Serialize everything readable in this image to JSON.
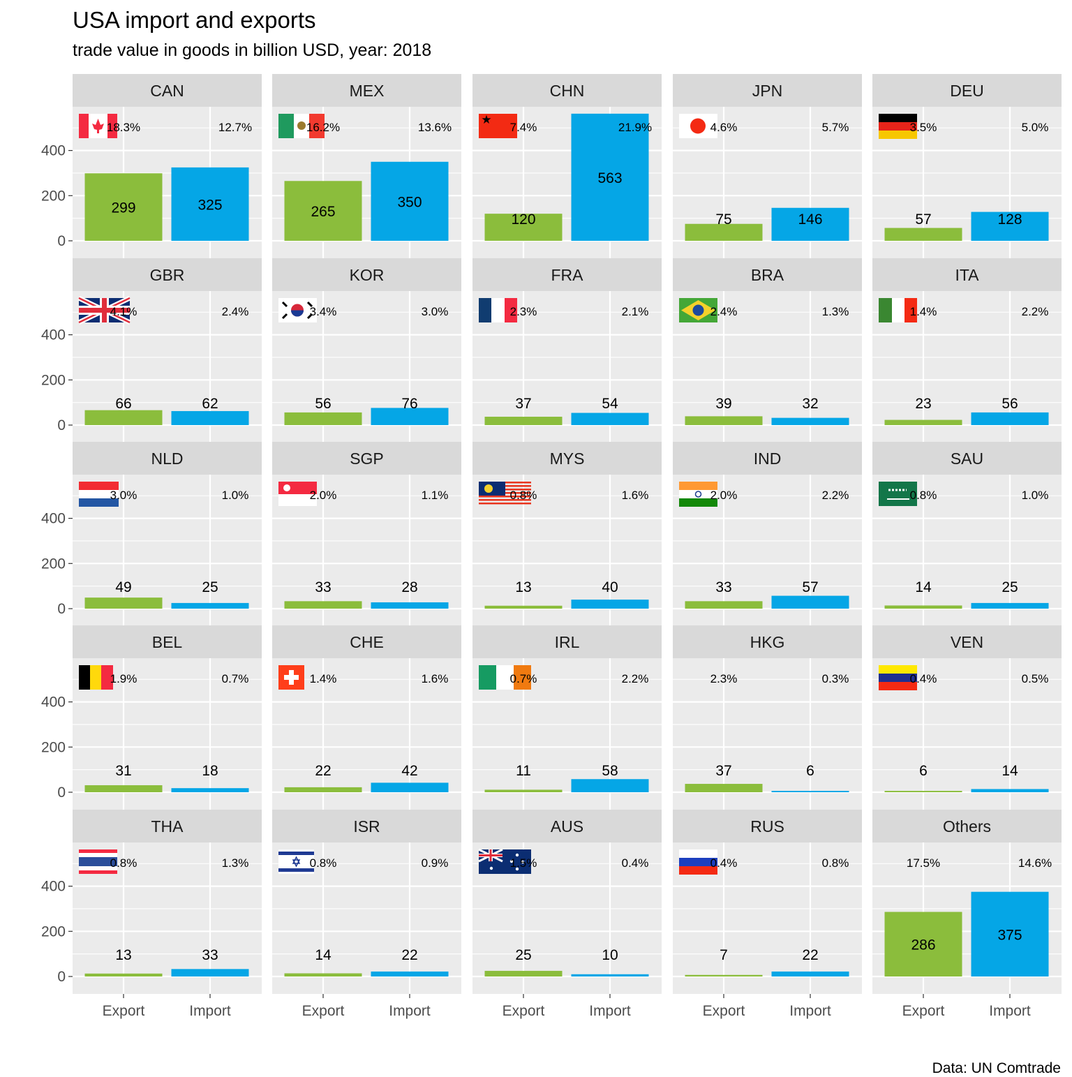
{
  "title": "USA import and exports",
  "subtitle": "trade value in goods in billion USD, year: 2018",
  "caption": "Data: UN Comtrade",
  "chart_data": {
    "type": "bar",
    "facet_layout": "5x5 grid of small multiples",
    "categories": [
      "Export",
      "Import"
    ],
    "ylim": [
      0,
      580
    ],
    "y_ticks": [
      0,
      200,
      400
    ],
    "grid": true,
    "colors": {
      "Export": "#8bbd3c",
      "Import": "#05a6e6",
      "panel": "#ebebeb",
      "strip": "#d9d9d9",
      "grid": "#ffffff"
    },
    "panels": [
      {
        "name": "CAN",
        "export": 299,
        "import": 325,
        "export_pct": "18.3%",
        "import_pct": "12.7%",
        "flag": "CAN"
      },
      {
        "name": "MEX",
        "export": 265,
        "import": 350,
        "export_pct": "16.2%",
        "import_pct": "13.6%",
        "flag": "MEX"
      },
      {
        "name": "CHN",
        "export": 120,
        "import": 563,
        "export_pct": "7.4%",
        "import_pct": "21.9%",
        "flag": "CHN"
      },
      {
        "name": "JPN",
        "export": 75,
        "import": 146,
        "export_pct": "4.6%",
        "import_pct": "5.7%",
        "flag": "JPN"
      },
      {
        "name": "DEU",
        "export": 57,
        "import": 128,
        "export_pct": "3.5%",
        "import_pct": "5.0%",
        "flag": "DEU"
      },
      {
        "name": "GBR",
        "export": 66,
        "import": 62,
        "export_pct": "4.1%",
        "import_pct": "2.4%",
        "flag": "GBR"
      },
      {
        "name": "KOR",
        "export": 56,
        "import": 76,
        "export_pct": "3.4%",
        "import_pct": "3.0%",
        "flag": "KOR"
      },
      {
        "name": "FRA",
        "export": 37,
        "import": 54,
        "export_pct": "2.3%",
        "import_pct": "2.1%",
        "flag": "FRA"
      },
      {
        "name": "BRA",
        "export": 39,
        "import": 32,
        "export_pct": "2.4%",
        "import_pct": "1.3%",
        "flag": "BRA"
      },
      {
        "name": "ITA",
        "export": 23,
        "import": 56,
        "export_pct": "1.4%",
        "import_pct": "2.2%",
        "flag": "ITA"
      },
      {
        "name": "NLD",
        "export": 49,
        "import": 25,
        "export_pct": "3.0%",
        "import_pct": "1.0%",
        "flag": "NLD"
      },
      {
        "name": "SGP",
        "export": 33,
        "import": 28,
        "export_pct": "2.0%",
        "import_pct": "1.1%",
        "flag": "SGP"
      },
      {
        "name": "MYS",
        "export": 13,
        "import": 40,
        "export_pct": "0.8%",
        "import_pct": "1.6%",
        "flag": "MYS"
      },
      {
        "name": "IND",
        "export": 33,
        "import": 57,
        "export_pct": "2.0%",
        "import_pct": "2.2%",
        "flag": "IND"
      },
      {
        "name": "SAU",
        "export": 14,
        "import": 25,
        "export_pct": "0.8%",
        "import_pct": "1.0%",
        "flag": "SAU"
      },
      {
        "name": "BEL",
        "export": 31,
        "import": 18,
        "export_pct": "1.9%",
        "import_pct": "0.7%",
        "flag": "BEL"
      },
      {
        "name": "CHE",
        "export": 22,
        "import": 42,
        "export_pct": "1.4%",
        "import_pct": "1.6%",
        "flag": "CHE"
      },
      {
        "name": "IRL",
        "export": 11,
        "import": 58,
        "export_pct": "0.7%",
        "import_pct": "2.2%",
        "flag": "IRL"
      },
      {
        "name": "HKG",
        "export": 37,
        "import": 6,
        "export_pct": "2.3%",
        "import_pct": "0.3%",
        "flag": ""
      },
      {
        "name": "VEN",
        "export": 6,
        "import": 14,
        "export_pct": "0.4%",
        "import_pct": "0.5%",
        "flag": "VEN"
      },
      {
        "name": "THA",
        "export": 13,
        "import": 33,
        "export_pct": "0.8%",
        "import_pct": "1.3%",
        "flag": "THA"
      },
      {
        "name": "ISR",
        "export": 14,
        "import": 22,
        "export_pct": "0.8%",
        "import_pct": "0.9%",
        "flag": "ISR"
      },
      {
        "name": "AUS",
        "export": 25,
        "import": 10,
        "export_pct": "1.5%",
        "import_pct": "0.4%",
        "flag": "AUS"
      },
      {
        "name": "RUS",
        "export": 7,
        "import": 22,
        "export_pct": "0.4%",
        "import_pct": "0.8%",
        "flag": "RUS"
      },
      {
        "name": "Others",
        "export": 286,
        "import": 375,
        "export_pct": "17.5%",
        "import_pct": "14.6%",
        "flag": ""
      }
    ]
  }
}
